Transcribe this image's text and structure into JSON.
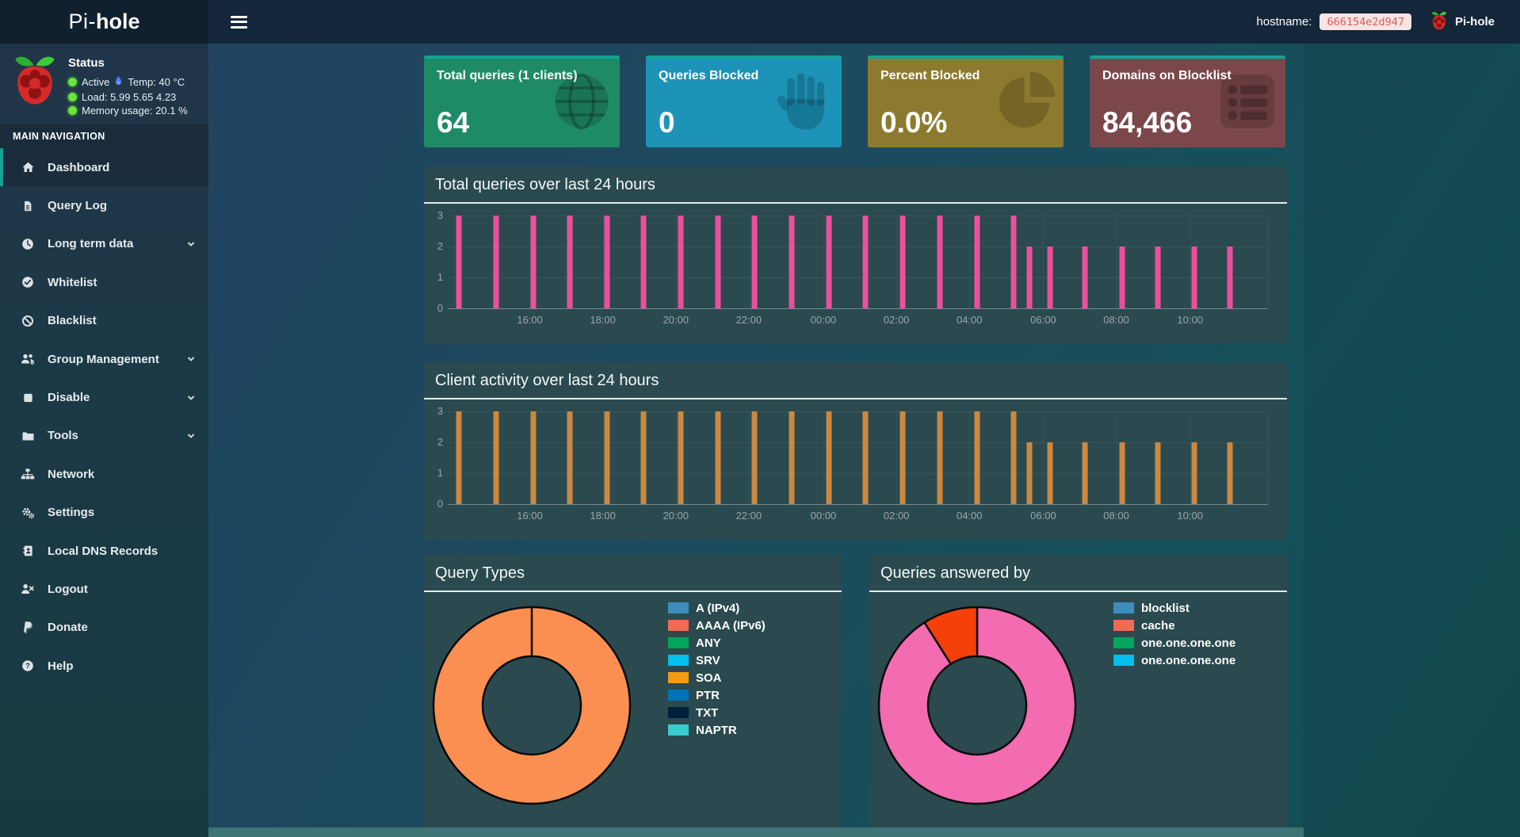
{
  "theme": {
    "card_top_border": "#12a396",
    "sidebar_active_accent": "#18a195",
    "status_dot_color": "#69e53b"
  },
  "navbar": {
    "hostname_label": "hostname:",
    "hostname_value": "666154e2d947",
    "brand": "Pi-hole"
  },
  "sidebar": {
    "logo": {
      "prefix": "Pi-",
      "bold": "hole"
    },
    "status": {
      "title": "Status",
      "active": "Active",
      "temp": "Temp: 40 °C",
      "load": "Load:  5.99  5.65  4.23",
      "memory": "Memory usage:  20.1 %"
    },
    "nav_title": "MAIN NAVIGATION",
    "menu": [
      {
        "label": "Dashboard",
        "icon": "home",
        "active": true
      },
      {
        "label": "Query Log",
        "icon": "file"
      },
      {
        "label": "Long term data",
        "icon": "clock",
        "chevron": true
      },
      {
        "label": "Whitelist",
        "icon": "check-circle"
      },
      {
        "label": "Blacklist",
        "icon": "ban"
      },
      {
        "label": "Group Management",
        "icon": "users",
        "chevron": true
      },
      {
        "label": "Disable",
        "icon": "square",
        "chevron": true
      },
      {
        "label": "Tools",
        "icon": "folder",
        "chevron": true
      },
      {
        "label": "Network",
        "icon": "sitemap"
      },
      {
        "label": "Settings",
        "icon": "cogs"
      },
      {
        "label": "Local DNS Records",
        "icon": "address-book"
      },
      {
        "label": "Logout",
        "icon": "user-times"
      },
      {
        "label": "Donate",
        "icon": "paypal"
      },
      {
        "label": "Help",
        "icon": "question-circle"
      }
    ]
  },
  "cards": [
    {
      "title": "Total queries (1 clients)",
      "value": "64",
      "bg": "#1f8b66",
      "icon": "globe"
    },
    {
      "title": "Queries Blocked",
      "value": "0",
      "bg": "#1d93b7",
      "icon": "hand"
    },
    {
      "title": "Percent Blocked",
      "value": "0.0%",
      "bg": "#8c7a2f",
      "icon": "pie"
    },
    {
      "title": "Domains on Blocklist",
      "value": "84,466",
      "bg": "#7b474b",
      "icon": "list"
    }
  ],
  "charts": [
    {
      "type": "bar",
      "title": "Total queries over last 24 hours",
      "color": "#ee4f9d",
      "ymax": 3,
      "yticks": [
        "3",
        "2",
        "1",
        "0"
      ],
      "xticks": [
        {
          "label": "16:00",
          "f": 0.1
        },
        {
          "label": "18:00",
          "f": 0.189
        },
        {
          "label": "20:00",
          "f": 0.278
        },
        {
          "label": "22:00",
          "f": 0.367
        },
        {
          "label": "00:00",
          "f": 0.458
        },
        {
          "label": "02:00",
          "f": 0.547
        },
        {
          "label": "04:00",
          "f": 0.636
        },
        {
          "label": "06:00",
          "f": 0.726
        },
        {
          "label": "08:00",
          "f": 0.815
        },
        {
          "label": "10:00",
          "f": 0.905
        }
      ],
      "bars": [
        {
          "f": 0.014,
          "v": 3
        },
        {
          "f": 0.059,
          "v": 3
        },
        {
          "f": 0.104,
          "v": 3
        },
        {
          "f": 0.149,
          "v": 3
        },
        {
          "f": 0.194,
          "v": 3
        },
        {
          "f": 0.239,
          "v": 3
        },
        {
          "f": 0.284,
          "v": 3
        },
        {
          "f": 0.329,
          "v": 3
        },
        {
          "f": 0.374,
          "v": 3
        },
        {
          "f": 0.419,
          "v": 3
        },
        {
          "f": 0.465,
          "v": 3
        },
        {
          "f": 0.509,
          "v": 3
        },
        {
          "f": 0.555,
          "v": 3
        },
        {
          "f": 0.6,
          "v": 3
        },
        {
          "f": 0.645,
          "v": 3
        },
        {
          "f": 0.69,
          "v": 3
        },
        {
          "f": 0.709,
          "v": 2
        },
        {
          "f": 0.734,
          "v": 2
        },
        {
          "f": 0.777,
          "v": 2
        },
        {
          "f": 0.822,
          "v": 2
        },
        {
          "f": 0.866,
          "v": 2
        },
        {
          "f": 0.91,
          "v": 2
        },
        {
          "f": 0.954,
          "v": 2
        }
      ]
    },
    {
      "type": "bar",
      "title": "Client activity over last 24 hours",
      "color": "#cc8840",
      "ymax": 3,
      "yticks": [
        "3",
        "2",
        "1",
        "0"
      ],
      "xticks": [
        {
          "label": "16:00",
          "f": 0.1
        },
        {
          "label": "18:00",
          "f": 0.189
        },
        {
          "label": "20:00",
          "f": 0.278
        },
        {
          "label": "22:00",
          "f": 0.367
        },
        {
          "label": "00:00",
          "f": 0.458
        },
        {
          "label": "02:00",
          "f": 0.547
        },
        {
          "label": "04:00",
          "f": 0.636
        },
        {
          "label": "06:00",
          "f": 0.726
        },
        {
          "label": "08:00",
          "f": 0.815
        },
        {
          "label": "10:00",
          "f": 0.905
        }
      ],
      "bars": [
        {
          "f": 0.014,
          "v": 3
        },
        {
          "f": 0.059,
          "v": 3
        },
        {
          "f": 0.104,
          "v": 3
        },
        {
          "f": 0.149,
          "v": 3
        },
        {
          "f": 0.194,
          "v": 3
        },
        {
          "f": 0.239,
          "v": 3
        },
        {
          "f": 0.284,
          "v": 3
        },
        {
          "f": 0.329,
          "v": 3
        },
        {
          "f": 0.374,
          "v": 3
        },
        {
          "f": 0.419,
          "v": 3
        },
        {
          "f": 0.465,
          "v": 3
        },
        {
          "f": 0.509,
          "v": 3
        },
        {
          "f": 0.555,
          "v": 3
        },
        {
          "f": 0.6,
          "v": 3
        },
        {
          "f": 0.645,
          "v": 3
        },
        {
          "f": 0.69,
          "v": 3
        },
        {
          "f": 0.709,
          "v": 2
        },
        {
          "f": 0.734,
          "v": 2
        },
        {
          "f": 0.777,
          "v": 2
        },
        {
          "f": 0.822,
          "v": 2
        },
        {
          "f": 0.866,
          "v": 2
        },
        {
          "f": 0.91,
          "v": 2
        },
        {
          "f": 0.954,
          "v": 2
        }
      ]
    }
  ],
  "pies": [
    {
      "type": "pie",
      "title": "Query Types",
      "slices": [
        {
          "value": 100,
          "color": "#fb8e51"
        }
      ],
      "legend": [
        {
          "label": "A (IPv4)",
          "color": "#3c8dbc"
        },
        {
          "label": "AAAA (IPv6)",
          "color": "#f56954"
        },
        {
          "label": "ANY",
          "color": "#00a65a"
        },
        {
          "label": "SRV",
          "color": "#00c0ef"
        },
        {
          "label": "SOA",
          "color": "#f39c12"
        },
        {
          "label": "PTR",
          "color": "#0073b7"
        },
        {
          "label": "TXT",
          "color": "#001f3f"
        },
        {
          "label": "NAPTR",
          "color": "#39cccc"
        }
      ]
    },
    {
      "type": "pie",
      "title": "Queries answered by",
      "slices": [
        {
          "value": 91,
          "color": "#f36bb1"
        },
        {
          "value": 9,
          "color": "#f5400a"
        }
      ],
      "legend": [
        {
          "label": "blocklist",
          "color": "#3c8dbc"
        },
        {
          "label": "cache",
          "color": "#f56954"
        },
        {
          "label": "one.one.one.one",
          "color": "#00a65a"
        },
        {
          "label": "one.one.one.one",
          "color": "#00c0ef"
        }
      ]
    }
  ]
}
